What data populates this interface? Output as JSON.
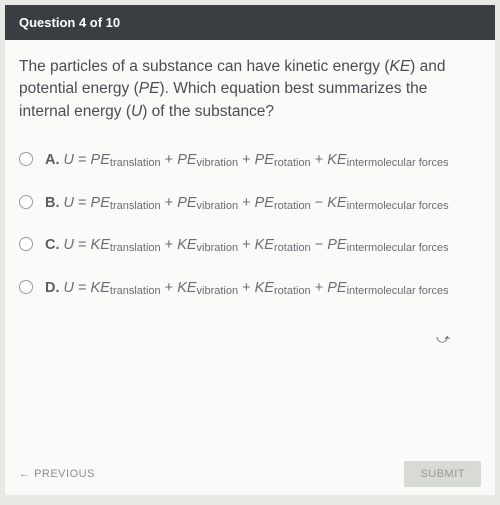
{
  "header": {
    "title": "Question 4 of 10"
  },
  "question": {
    "text": "The particles of a substance can have kinetic energy (KE) and potential energy (PE). Which equation best summarizes the internal energy (U) of the substance?"
  },
  "options": {
    "a": {
      "letter": "A.",
      "eq": "U = PEtranslation + PEvibration + PErotation + KEintermolecular forces"
    },
    "b": {
      "letter": "B.",
      "eq": "U = PEtranslation + PEvibration + PErotation − KEintermolecular forces"
    },
    "c": {
      "letter": "C.",
      "eq": "U = KEtranslation + KEvibration + KErotation − PEintermolecular forces"
    },
    "d": {
      "letter": "D.",
      "eq": "U = KEtranslation + KEvibration + KErotation + PEintermolecular forces"
    }
  },
  "footer": {
    "previous": "PREVIOUS",
    "submit": "SUBMIT"
  },
  "colors": {
    "header_bg": "#3a3d42",
    "body_bg": "#e8e9e4",
    "card_bg": "#fafaf8",
    "text": "#4a4d52",
    "muted": "#6a6d72"
  }
}
